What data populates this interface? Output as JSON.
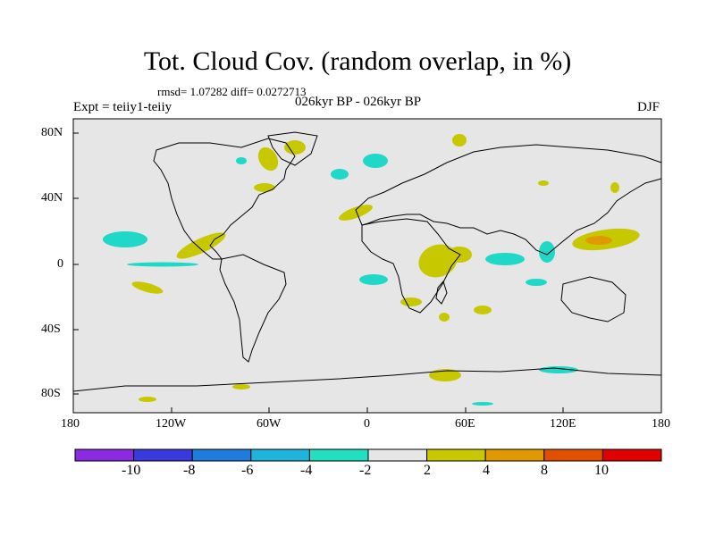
{
  "title": "Tot. Cloud Cov. (random overlap, in %)",
  "stats": "rmsd= 1.07282 diff= 0.0272713",
  "experiment": "Expt = teiiy1-teiiy",
  "period": "026kyr BP - 026kyr BP",
  "season": "DJF",
  "map": {
    "lat_ticks": [
      "80N",
      "40N",
      "0",
      "40S",
      "80S"
    ],
    "lon_ticks": [
      "180",
      "120W",
      "60W",
      "0",
      "60E",
      "120E",
      "180"
    ]
  },
  "colorbar": {
    "labels": [
      "-10",
      "-8",
      "-6",
      "-4",
      "-2",
      "2",
      "4",
      "8",
      "10"
    ],
    "colors": [
      "#8a2be2",
      "#3a3adc",
      "#1e7ddc",
      "#1eb4dc",
      "#20e0c0",
      "#e6e6e6",
      "#c8c800",
      "#e09a00",
      "#e05000",
      "#e00000"
    ]
  },
  "anomaly_colors": {
    "neg_small": "#20d8c8",
    "pos_small": "#c8c800",
    "pos_mid": "#e09a00",
    "pos_large": "#d05000"
  }
}
